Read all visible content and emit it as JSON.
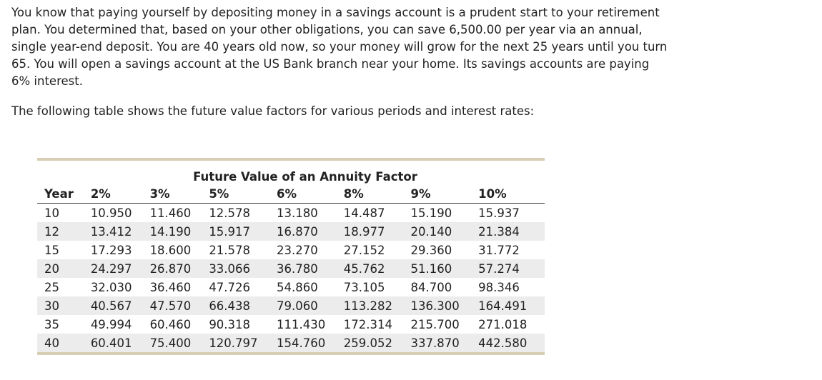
{
  "problem": {
    "paragraph": "You know that paying yourself by depositing money in a savings account is a prudent start to your retirement plan. You determined that, based on your other obligations, you can save 6,500.00 per year via an annual, single year-end deposit. You are 40 years old now, so your money will grow for the next 25 years until you turn 65. You will open a savings account at the US Bank branch near your home. Its savings accounts are paying 6% interest.",
    "table_intro": "The following table shows the future value factors for various periods and interest rates:"
  },
  "table": {
    "caption": "Future Value of an Annuity Factor",
    "headers": [
      "Year",
      "2%",
      "3%",
      "5%",
      "6%",
      "8%",
      "9%",
      "10%"
    ],
    "rows": [
      [
        "10",
        "10.950",
        "11.460",
        "12.578",
        "13.180",
        "14.487",
        "15.190",
        "15.937"
      ],
      [
        "12",
        "13.412",
        "14.190",
        "15.917",
        "16.870",
        "18.977",
        "20.140",
        "21.384"
      ],
      [
        "15",
        "17.293",
        "18.600",
        "21.578",
        "23.270",
        "27.152",
        "29.360",
        "31.772"
      ],
      [
        "20",
        "24.297",
        "26.870",
        "33.066",
        "36.780",
        "45.762",
        "51.160",
        "57.274"
      ],
      [
        "25",
        "32.030",
        "36.460",
        "47.726",
        "54.860",
        "73.105",
        "84.700",
        "98.346"
      ],
      [
        "30",
        "40.567",
        "47.570",
        "66.438",
        "79.060",
        "113.282",
        "136.300",
        "164.491"
      ],
      [
        "35",
        "49.994",
        "60.460",
        "90.318",
        "111.430",
        "172.314",
        "215.700",
        "271.018"
      ],
      [
        "40",
        "60.401",
        "75.400",
        "120.797",
        "154.760",
        "259.052",
        "337.870",
        "442.580"
      ]
    ]
  }
}
